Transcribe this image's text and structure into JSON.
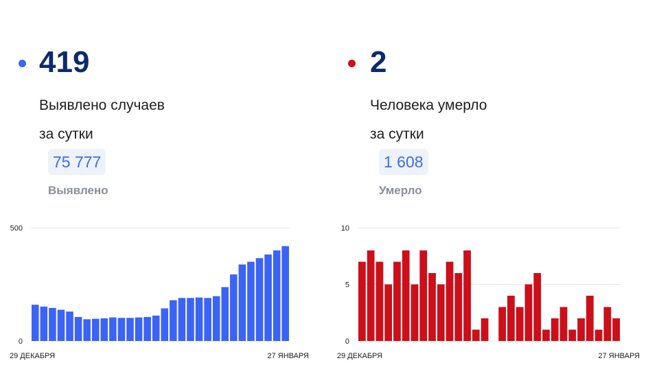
{
  "cases": {
    "daily_value": "419",
    "daily_caption": "Выявлено случаев\nза сутки",
    "total_value": "75 777",
    "total_label": "Выявлено",
    "accent_color": "#3b63f6"
  },
  "deaths": {
    "daily_value": "2",
    "daily_caption": "Человека умерло\nза сутки",
    "total_value": "1 608",
    "total_label": "Умерло",
    "accent_color": "#cc0f1a"
  },
  "chart_data": [
    {
      "type": "bar",
      "series": [
        {
          "values": [
            160,
            152,
            146,
            138,
            130,
            106,
            96,
            98,
            100,
            104,
            102,
            102,
            104,
            106,
            112,
            144,
            180,
            190,
            190,
            192,
            190,
            198,
            238,
            294,
            338,
            350,
            366,
            382,
            400,
            419
          ]
        }
      ],
      "x_start_label": "29 ДЕКАБРЯ",
      "x_end_label": "27 ЯНВАРЯ",
      "ylim": [
        0,
        500
      ],
      "yticks": [
        "0",
        "500"
      ],
      "grid": true,
      "color": "#3b63f6"
    },
    {
      "type": "bar",
      "series": [
        {
          "values": [
            7,
            8,
            7,
            5,
            7,
            8,
            5,
            8,
            6,
            5,
            7,
            6,
            8,
            1,
            2,
            0,
            3,
            4,
            3,
            5,
            6,
            1,
            2,
            3,
            1,
            2,
            4,
            1,
            3,
            2
          ]
        }
      ],
      "x_start_label": "29 ДЕКАБРЯ",
      "x_end_label": "27 ЯНВАРЯ",
      "ylim": [
        0,
        10
      ],
      "yticks": [
        "0",
        "5",
        "10"
      ],
      "grid": true,
      "color": "#cc0f1a"
    }
  ]
}
